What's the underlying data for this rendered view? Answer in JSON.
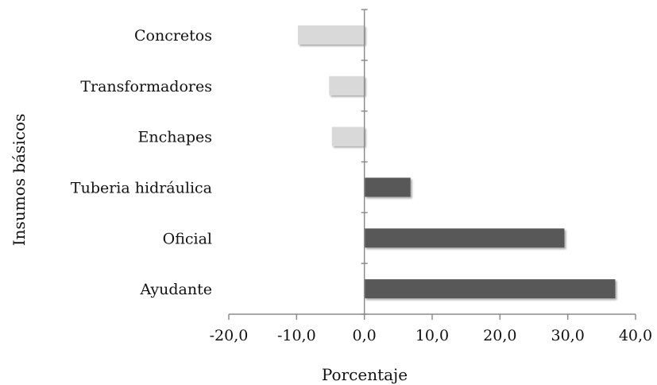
{
  "chart_data": {
    "type": "bar",
    "orientation": "horizontal",
    "xlabel": "Porcentaje",
    "ylabel": "Insumos básicos",
    "xlim": [
      -20,
      40
    ],
    "xticks": [
      -20,
      -10,
      0,
      10,
      20,
      30,
      40
    ],
    "xtick_labels": [
      "-20,0",
      "-10,0",
      "0,0",
      "10,0",
      "20,0",
      "30,0",
      "40,0"
    ],
    "grid": false,
    "legend": "none",
    "categories": [
      "Concretos",
      "Transformadores",
      "Enchapes",
      "Tuberia hidráulica",
      "Oficial",
      "Ayudante"
    ],
    "values": [
      -9.8,
      -5.2,
      -4.8,
      6.8,
      29.5,
      37.0
    ],
    "colors": {
      "negative": "#d9d9d9",
      "positive": "#595959",
      "axis": "#8c8c8c"
    }
  }
}
